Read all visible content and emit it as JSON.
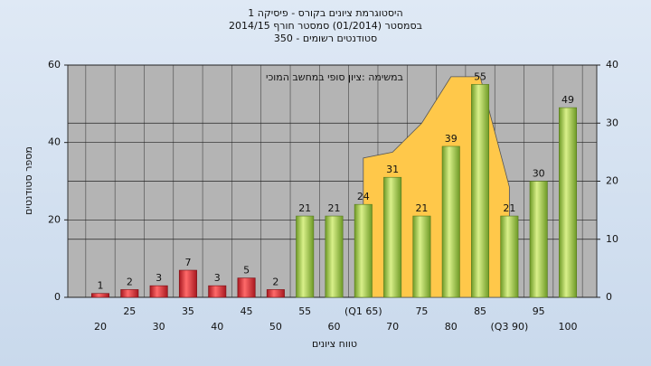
{
  "chart_data": {
    "type": "bar",
    "title": [
      "היסטוגרמת ציונים בקורס - פיסיקה 1",
      "בסמסטר (01/2014) סמסטר חורף 2014/15",
      "סטודנטים רשומים - 350"
    ],
    "annotation": "במשימה :ציון סופי במחשב המוכי",
    "xlabel": "טווח ציונים",
    "ylabel": "מספר סטודנטים",
    "categories": [
      "20",
      "25",
      "30",
      "35",
      "40",
      "45",
      "50",
      "55",
      "60",
      "(Q1 65)",
      "70",
      "75",
      "80",
      "85",
      "(Q3 90)",
      "95",
      "100"
    ],
    "series": [
      {
        "type": "area",
        "axis": "y2",
        "color": "#ffc84a",
        "values": [
          null,
          null,
          null,
          null,
          null,
          null,
          null,
          null,
          null,
          24,
          25,
          30,
          38,
          38,
          19,
          null,
          null
        ]
      },
      {
        "type": "bar",
        "colors": [
          "#e0303a",
          "#9cc24a"
        ],
        "values": [
          1,
          2,
          3,
          7,
          3,
          5,
          2,
          21,
          21,
          24,
          31,
          21,
          39,
          55,
          21,
          30,
          49
        ]
      }
    ],
    "ylim": [
      0,
      60
    ],
    "yticks": [
      0,
      20,
      40,
      60
    ],
    "y2lim": [
      0,
      40
    ],
    "y2ticks": [
      0,
      10,
      20,
      30,
      40
    ],
    "grid": true
  }
}
